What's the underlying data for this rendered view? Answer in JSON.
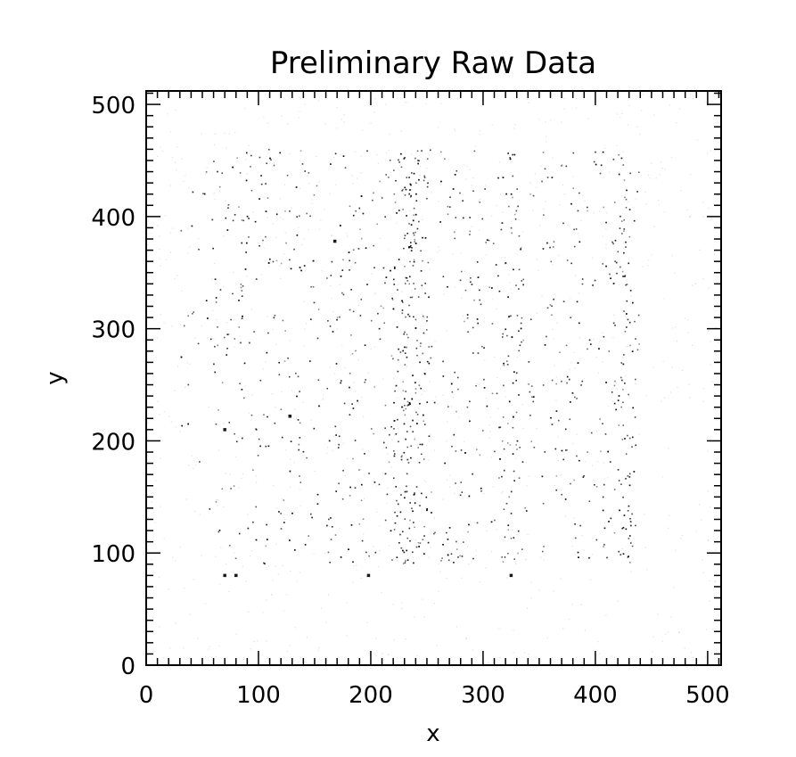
{
  "chart_data": {
    "type": "heatmap",
    "title": "Preliminary Raw Data",
    "xlabel": "x",
    "ylabel": "y",
    "xlim": [
      0,
      512
    ],
    "ylim": [
      0,
      512
    ],
    "x_ticks": [
      0,
      100,
      200,
      300,
      400,
      500
    ],
    "y_ticks": [
      0,
      100,
      200,
      300,
      400,
      500
    ],
    "x_tick_labels": [
      "0",
      "100",
      "200",
      "300",
      "400",
      "500"
    ],
    "y_tick_labels": [
      "0",
      "100",
      "200",
      "300",
      "400",
      "500"
    ],
    "colormap": "grayscale-inverted",
    "background_color": "#ffffff",
    "ink_color": "#000000",
    "grid": false,
    "description_regions": {
      "detector_x_range": [
        30,
        440
      ],
      "detector_y_range": [
        90,
        460
      ],
      "gap_x": [
        155,
        160,
        258,
        262,
        348,
        352
      ],
      "gap_y": [
        175,
        180,
        262,
        267,
        362,
        367
      ],
      "bright_columns_x": [
        228,
        236,
        244,
        325,
        425
      ],
      "hot_pixels": [
        [
          70,
          80
        ],
        [
          70,
          210
        ],
        [
          80,
          80
        ],
        [
          198,
          80
        ],
        [
          325,
          80
        ],
        [
          168,
          378
        ],
        [
          128,
          222
        ]
      ]
    }
  }
}
